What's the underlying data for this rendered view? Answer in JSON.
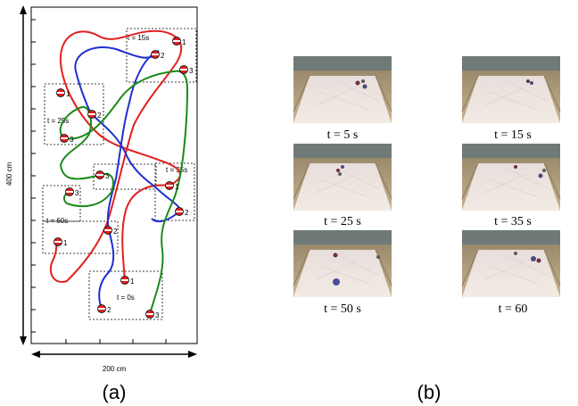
{
  "panel_a": {
    "label": "(a)",
    "height_label": "400 cm",
    "width_label": "200 cm",
    "time_boxes": [
      {
        "id": "t0",
        "label": "t = 0s"
      },
      {
        "id": "t15",
        "label": "t = 15s"
      },
      {
        "id": "t25",
        "label": "t = 25s"
      },
      {
        "id": "t35",
        "label": "t = 35s"
      },
      {
        "id": "t60",
        "label": "t = 60s"
      }
    ],
    "robots": [
      {
        "number": "1",
        "color": "#e02020"
      },
      {
        "number": "2",
        "color": "#1f2fd0"
      },
      {
        "number": "3",
        "color": "#1a8a1a"
      }
    ],
    "trajectory_colors": {
      "robot1": "#e02020",
      "robot2": "#1f2fd0",
      "robot3": "#1a8a1a"
    }
  },
  "panel_b": {
    "label": "(b)",
    "frames": [
      {
        "caption": "t = 5 s"
      },
      {
        "caption": "t = 15 s"
      },
      {
        "caption": "t = 25 s"
      },
      {
        "caption": "t = 35 s"
      },
      {
        "caption": "t = 50 s"
      },
      {
        "caption": "t = 60"
      }
    ]
  }
}
